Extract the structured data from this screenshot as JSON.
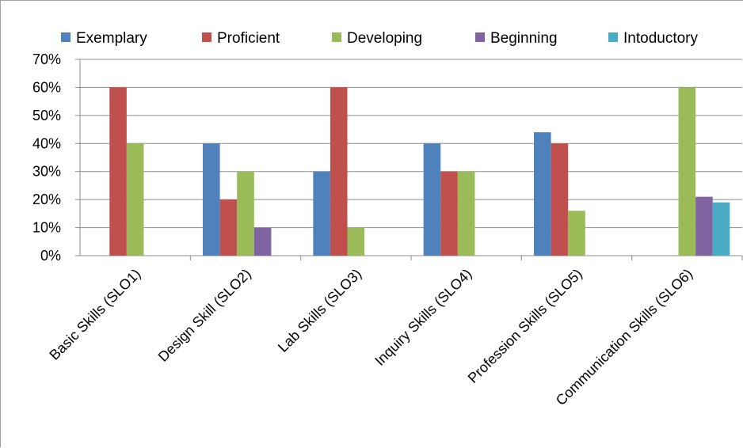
{
  "chart_data": {
    "type": "bar",
    "title": "",
    "xlabel": "",
    "ylabel": "",
    "ylim": [
      0,
      70
    ],
    "y_ticks": [
      "0%",
      "10%",
      "20%",
      "30%",
      "40%",
      "50%",
      "60%",
      "70%"
    ],
    "grid": true,
    "legend_position": "top",
    "categories": [
      "Basic Skills (SLO1)",
      "Design Skill (SLO2)",
      "Lab Skills (SLO3)",
      "Inquiry Skills (SLO4)",
      "Profession Skills (SLO5)",
      "Communication Skills (SLO6)"
    ],
    "series": [
      {
        "name": "Exemplary",
        "color": "#4F81BD",
        "values": [
          0,
          40,
          30,
          40,
          44,
          0
        ]
      },
      {
        "name": "Proficient",
        "color": "#C0504D",
        "values": [
          60,
          20,
          60,
          30,
          40,
          0
        ]
      },
      {
        "name": "Developing",
        "color": "#9BBB59",
        "values": [
          40,
          30,
          10,
          30,
          16,
          60
        ]
      },
      {
        "name": "Beginning",
        "color": "#8064A2",
        "values": [
          0,
          10,
          0,
          0,
          0,
          21
        ]
      },
      {
        "name": "Intoductory",
        "color": "#4BACC6",
        "values": [
          0,
          0,
          0,
          0,
          0,
          19
        ]
      }
    ]
  }
}
